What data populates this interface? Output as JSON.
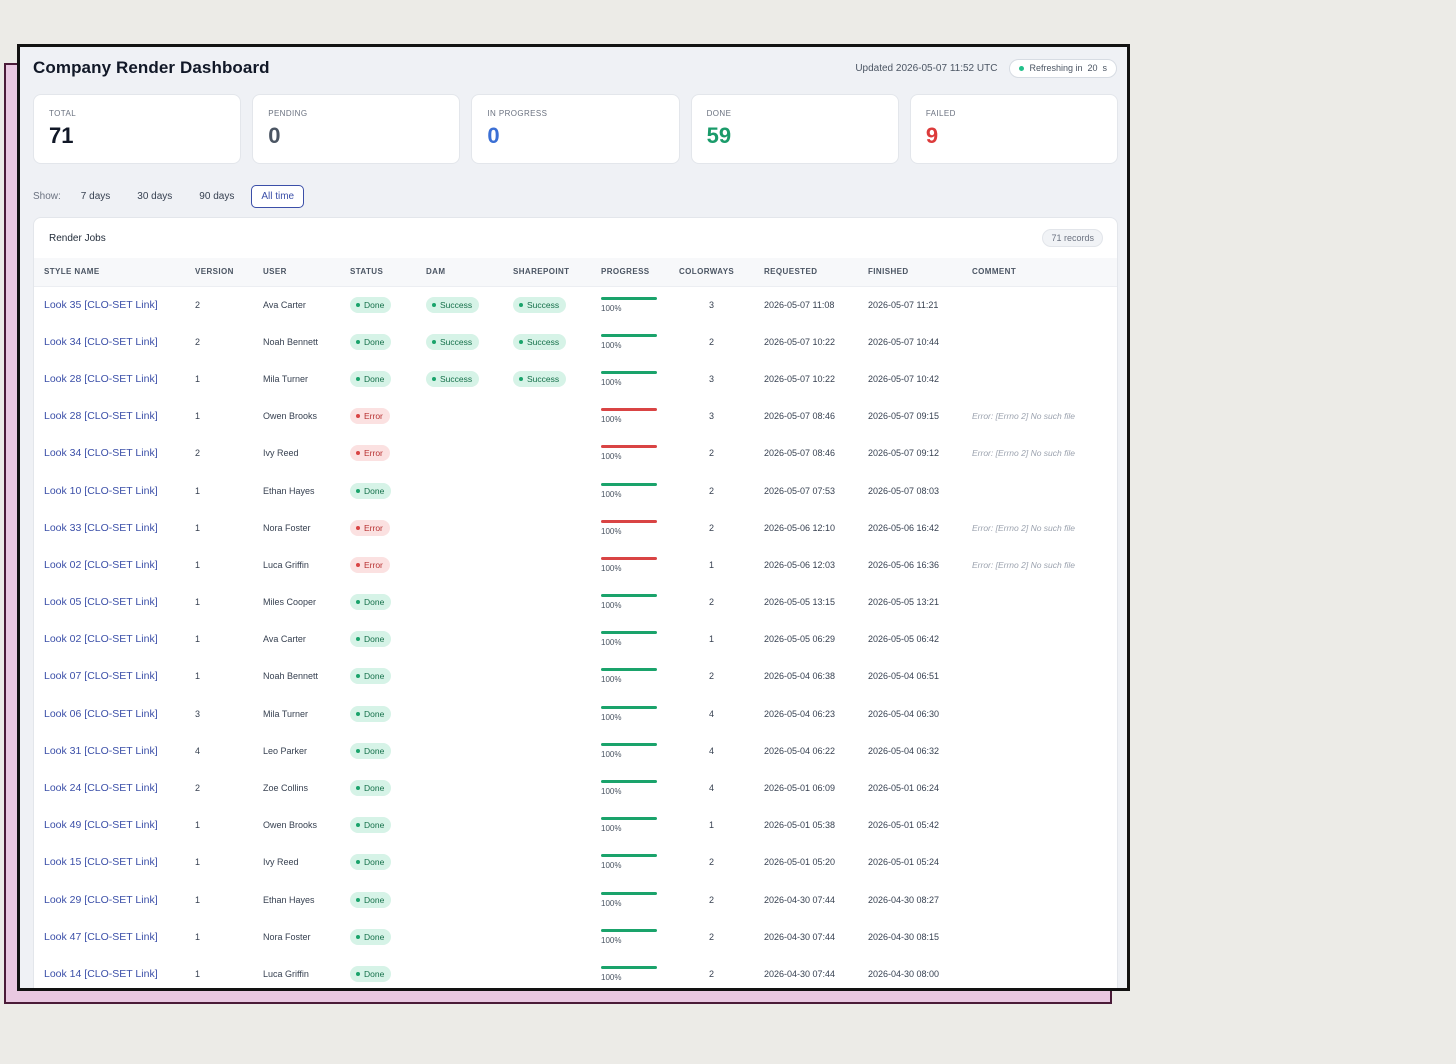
{
  "app": {
    "title": "Company Render Dashboard",
    "updated": "Updated 2026-05-07 11:52 UTC",
    "refreshing_label": "Refreshing in",
    "refresh_seconds": "20",
    "refresh_unit": "s"
  },
  "stats": [
    {
      "label": "TOTAL",
      "value": "71",
      "color": "#111827"
    },
    {
      "label": "PENDING",
      "value": "0",
      "color": "#4b5563"
    },
    {
      "label": "IN PROGRESS",
      "value": "0",
      "color": "#3b6fd4"
    },
    {
      "label": "DONE",
      "value": "59",
      "color": "#1a9b6a"
    },
    {
      "label": "FAILED",
      "value": "9",
      "color": "#dc3b3b"
    }
  ],
  "filters": {
    "label": "Show:",
    "options": [
      "7 days",
      "30 days",
      "90 days",
      "All time"
    ],
    "active": "All time"
  },
  "table": {
    "title": "Render Jobs",
    "records": "71 records",
    "columns": [
      "STYLE NAME",
      "VERSION",
      "USER",
      "STATUS",
      "DAM",
      "SHAREPOINT",
      "PROGRESS",
      "COLORWAYS",
      "REQUESTED",
      "FINISHED",
      "COMMENT"
    ],
    "rows": [
      {
        "style": "Look 35 [CLO-SET Link]",
        "version": "2",
        "user": "Ava Carter",
        "status": "Done",
        "dam": "Success",
        "sharepoint": "Success",
        "progress": "100%",
        "colorways": "3",
        "requested": "2026-05-07 11:08",
        "finished": "2026-05-07 11:21",
        "comment": ""
      },
      {
        "style": "Look 34 [CLO-SET Link]",
        "version": "2",
        "user": "Noah Bennett",
        "status": "Done",
        "dam": "Success",
        "sharepoint": "Success",
        "progress": "100%",
        "colorways": "2",
        "requested": "2026-05-07 10:22",
        "finished": "2026-05-07 10:44",
        "comment": ""
      },
      {
        "style": "Look 28 [CLO-SET Link]",
        "version": "1",
        "user": "Mila Turner",
        "status": "Done",
        "dam": "Success",
        "sharepoint": "Success",
        "progress": "100%",
        "colorways": "3",
        "requested": "2026-05-07 10:22",
        "finished": "2026-05-07 10:42",
        "comment": ""
      },
      {
        "style": "Look 28 [CLO-SET Link]",
        "version": "1",
        "user": "Owen Brooks",
        "status": "Error",
        "dam": "",
        "sharepoint": "",
        "progress": "100%",
        "colorways": "3",
        "requested": "2026-05-07 08:46",
        "finished": "2026-05-07 09:15",
        "comment": "Error: [Errno 2] No such file"
      },
      {
        "style": "Look 34 [CLO-SET Link]",
        "version": "2",
        "user": "Ivy Reed",
        "status": "Error",
        "dam": "",
        "sharepoint": "",
        "progress": "100%",
        "colorways": "2",
        "requested": "2026-05-07 08:46",
        "finished": "2026-05-07 09:12",
        "comment": "Error: [Errno 2] No such file"
      },
      {
        "style": "Look 10 [CLO-SET Link]",
        "version": "1",
        "user": "Ethan Hayes",
        "status": "Done",
        "dam": "",
        "sharepoint": "",
        "progress": "100%",
        "colorways": "2",
        "requested": "2026-05-07 07:53",
        "finished": "2026-05-07 08:03",
        "comment": ""
      },
      {
        "style": "Look 33 [CLO-SET Link]",
        "version": "1",
        "user": "Nora Foster",
        "status": "Error",
        "dam": "",
        "sharepoint": "",
        "progress": "100%",
        "colorways": "2",
        "requested": "2026-05-06 12:10",
        "finished": "2026-05-06 16:42",
        "comment": "Error: [Errno 2] No such file"
      },
      {
        "style": "Look 02 [CLO-SET Link]",
        "version": "1",
        "user": "Luca Griffin",
        "status": "Error",
        "dam": "",
        "sharepoint": "",
        "progress": "100%",
        "colorways": "1",
        "requested": "2026-05-06 12:03",
        "finished": "2026-05-06 16:36",
        "comment": "Error: [Errno 2] No such file"
      },
      {
        "style": "Look 05 [CLO-SET Link]",
        "version": "1",
        "user": "Miles Cooper",
        "status": "Done",
        "dam": "",
        "sharepoint": "",
        "progress": "100%",
        "colorways": "2",
        "requested": "2026-05-05 13:15",
        "finished": "2026-05-05 13:21",
        "comment": ""
      },
      {
        "style": "Look 02 [CLO-SET Link]",
        "version": "1",
        "user": "Ava Carter",
        "status": "Done",
        "dam": "",
        "sharepoint": "",
        "progress": "100%",
        "colorways": "1",
        "requested": "2026-05-05 06:29",
        "finished": "2026-05-05 06:42",
        "comment": ""
      },
      {
        "style": "Look 07 [CLO-SET Link]",
        "version": "1",
        "user": "Noah Bennett",
        "status": "Done",
        "dam": "",
        "sharepoint": "",
        "progress": "100%",
        "colorways": "2",
        "requested": "2026-05-04 06:38",
        "finished": "2026-05-04 06:51",
        "comment": ""
      },
      {
        "style": "Look 06 [CLO-SET Link]",
        "version": "3",
        "user": "Mila Turner",
        "status": "Done",
        "dam": "",
        "sharepoint": "",
        "progress": "100%",
        "colorways": "4",
        "requested": "2026-05-04 06:23",
        "finished": "2026-05-04 06:30",
        "comment": ""
      },
      {
        "style": "Look 31 [CLO-SET Link]",
        "version": "4",
        "user": "Leo Parker",
        "status": "Done",
        "dam": "",
        "sharepoint": "",
        "progress": "100%",
        "colorways": "4",
        "requested": "2026-05-04 06:22",
        "finished": "2026-05-04 06:32",
        "comment": ""
      },
      {
        "style": "Look 24 [CLO-SET Link]",
        "version": "2",
        "user": "Zoe Collins",
        "status": "Done",
        "dam": "",
        "sharepoint": "",
        "progress": "100%",
        "colorways": "4",
        "requested": "2026-05-01 06:09",
        "finished": "2026-05-01 06:24",
        "comment": ""
      },
      {
        "style": "Look 49 [CLO-SET Link]",
        "version": "1",
        "user": "Owen Brooks",
        "status": "Done",
        "dam": "",
        "sharepoint": "",
        "progress": "100%",
        "colorways": "1",
        "requested": "2026-05-01 05:38",
        "finished": "2026-05-01 05:42",
        "comment": ""
      },
      {
        "style": "Look 15 [CLO-SET Link]",
        "version": "1",
        "user": "Ivy Reed",
        "status": "Done",
        "dam": "",
        "sharepoint": "",
        "progress": "100%",
        "colorways": "2",
        "requested": "2026-05-01 05:20",
        "finished": "2026-05-01 05:24",
        "comment": ""
      },
      {
        "style": "Look 29 [CLO-SET Link]",
        "version": "1",
        "user": "Ethan Hayes",
        "status": "Done",
        "dam": "",
        "sharepoint": "",
        "progress": "100%",
        "colorways": "2",
        "requested": "2026-04-30 07:44",
        "finished": "2026-04-30 08:27",
        "comment": ""
      },
      {
        "style": "Look 47 [CLO-SET Link]",
        "version": "1",
        "user": "Nora Foster",
        "status": "Done",
        "dam": "",
        "sharepoint": "",
        "progress": "100%",
        "colorways": "2",
        "requested": "2026-04-30 07:44",
        "finished": "2026-04-30 08:15",
        "comment": ""
      },
      {
        "style": "Look 14 [CLO-SET Link]",
        "version": "1",
        "user": "Luca Griffin",
        "status": "Done",
        "dam": "",
        "sharepoint": "",
        "progress": "100%",
        "colorways": "2",
        "requested": "2026-04-30 07:44",
        "finished": "2026-04-30 08:00",
        "comment": ""
      }
    ]
  },
  "colors": {
    "done": "#1aa36b",
    "error": "#d94444",
    "link": "#3b4fa8",
    "refresh_dot": "#22c08a"
  }
}
